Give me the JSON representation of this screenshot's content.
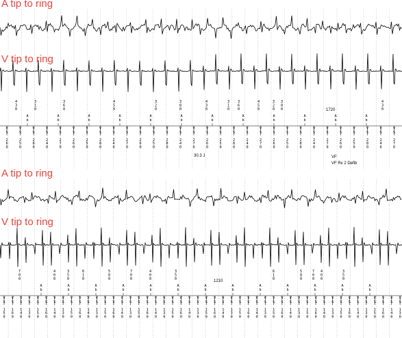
{
  "strips": [
    {
      "a_label": "A tip to ring",
      "v_label": "V tip to ring",
      "interval_label": "1720",
      "energy_label": "30.3 J",
      "vf_label": "VF",
      "therapy_label": "VF Rx 2 Defib",
      "a_event_label": "A",
      "a_event_sub": "b",
      "v_event_label": "V",
      "v_event_sub": "S",
      "f_event_label": "F",
      "c_event_label": "C",
      "d_event_label": "D"
    },
    {
      "a_label": "A tip to ring",
      "v_label": "V tip to ring",
      "interval_label": "1210",
      "a_event_label": "A",
      "a_event_sub": "b",
      "v_event_label": "V",
      "v_event_sub": "S",
      "f_event_label": "F",
      "r_event_label": "R"
    }
  ]
}
